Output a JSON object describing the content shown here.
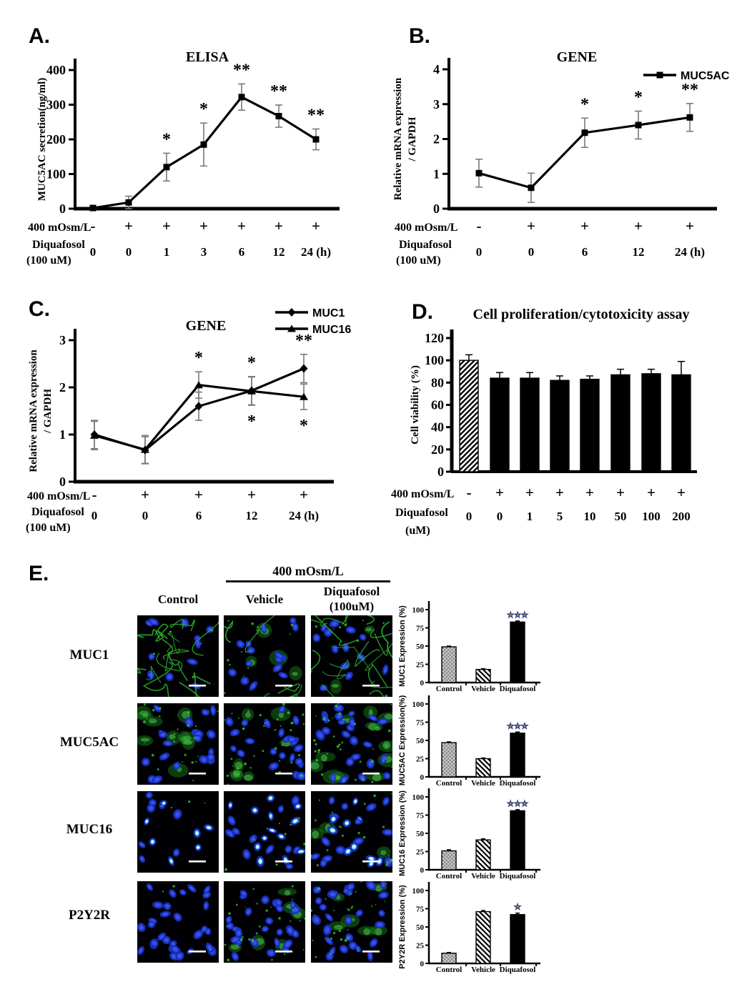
{
  "panels": {
    "a": {
      "label": "A."
    },
    "b": {
      "label": "B."
    },
    "c": {
      "label": "C."
    },
    "d": {
      "label": "D."
    },
    "e": {
      "label": "E.",
      "group_header": "400 mOsm/L",
      "col_headers": {
        "control": "Control",
        "vehicle": "Vehicle",
        "diquafosol": "Diquafosol",
        "diquafosol_dose": "(100uM)"
      },
      "row_labels": [
        "MUC1",
        "MUC5AC",
        "MUC16",
        "P2Y2R"
      ]
    }
  },
  "chart_data": [
    {
      "id": "A",
      "type": "line",
      "title": "ELISA",
      "ylabel": [
        "MUC5AC  secretion(ng/ml)"
      ],
      "ylim": [
        0,
        400
      ],
      "yticks": [
        0,
        100,
        200,
        300,
        400
      ],
      "series": [
        {
          "name": "MUC5AC",
          "marker": "square",
          "values": [
            2,
            18,
            120,
            185,
            322,
            267,
            200
          ],
          "errors": [
            4,
            18,
            40,
            62,
            38,
            32,
            30
          ]
        }
      ],
      "sig_above": [
        "",
        "",
        "*",
        "*",
        "**",
        "**",
        "**"
      ],
      "treatment_rows": [
        {
          "label": "400 mOsm/L",
          "values": [
            "-",
            "+",
            "+",
            "+",
            "+",
            "+",
            "+"
          ]
        },
        {
          "label": "Diquafosol",
          "sublabel": "(100 uM)",
          "values": [
            "0",
            "0",
            "1",
            "3",
            "6",
            "12",
            "24 (h)"
          ]
        }
      ]
    },
    {
      "id": "B",
      "type": "line",
      "title": "GENE",
      "ylabel": [
        "Relative  mRNA  expression",
        "/ GAPDH"
      ],
      "ylim": [
        0,
        4
      ],
      "yticks": [
        0,
        1,
        2,
        3,
        4
      ],
      "legend": true,
      "series": [
        {
          "name": "MUC5AC",
          "marker": "square",
          "values": [
            1.02,
            0.6,
            2.18,
            2.4,
            2.62
          ],
          "errors": [
            0.4,
            0.42,
            0.42,
            0.4,
            0.4
          ]
        }
      ],
      "sig_above": [
        "",
        "",
        "*",
        "*",
        "**"
      ],
      "treatment_rows": [
        {
          "label": "400 mOsm/L",
          "values": [
            "-",
            "+",
            "+",
            "+",
            "+"
          ]
        },
        {
          "label": "Diquafosol",
          "sublabel": "(100 uM)",
          "values": [
            "0",
            "0",
            "6",
            "12",
            "24 (h)"
          ]
        }
      ]
    },
    {
      "id": "C",
      "type": "line",
      "title": "GENE",
      "ylabel": [
        "Relative  mRNA  expression",
        "/ GAPDH"
      ],
      "ylim": [
        0,
        3
      ],
      "yticks": [
        0,
        1,
        2,
        3
      ],
      "legend": true,
      "series": [
        {
          "name": "MUC1",
          "marker": "diamond",
          "values": [
            1.0,
            0.67,
            1.6,
            1.93,
            2.4
          ],
          "errors": [
            0.3,
            0.28,
            0.3,
            0.3,
            0.3
          ]
        },
        {
          "name": "MUC16",
          "marker": "triangle",
          "values": [
            0.98,
            0.68,
            2.05,
            1.92,
            1.8
          ],
          "errors": [
            0.3,
            0.3,
            0.28,
            0.3,
            0.27
          ]
        }
      ],
      "sig_above": [
        "",
        "",
        "*",
        "*",
        "**"
      ],
      "sig_below": [
        "",
        "",
        "",
        "*",
        "*"
      ],
      "treatment_rows": [
        {
          "label": "400 mOsm/L",
          "values": [
            "-",
            "+",
            "+",
            "+",
            "+"
          ]
        },
        {
          "label": "Diquafosol",
          "sublabel": "(100 uM)",
          "values": [
            "0",
            "0",
            "6",
            "12",
            "24 (h)"
          ]
        }
      ]
    },
    {
      "id": "D",
      "type": "bar",
      "title": "Cell proliferation/cytotoxicity  assay",
      "ylabel": [
        "Cell viability  (%)"
      ],
      "ylim": [
        0,
        120
      ],
      "yticks": [
        0,
        20,
        40,
        60,
        80,
        100,
        120
      ],
      "values": [
        100,
        84,
        84,
        82,
        83,
        87,
        88,
        87
      ],
      "errors": [
        5,
        5,
        5,
        4,
        3,
        5,
        4,
        12
      ],
      "patterns": [
        "diagUp",
        "solid",
        "solid",
        "solid",
        "solid",
        "solid",
        "solid",
        "solid"
      ],
      "treatment_rows": [
        {
          "label": "400 mOsm/L",
          "values": [
            "-",
            "+",
            "+",
            "+",
            "+",
            "+",
            "+",
            "+"
          ]
        },
        {
          "label": "Diquafosol",
          "sublabel": "(uM)",
          "values": [
            "0",
            "0",
            "1",
            "5",
            "10",
            "50",
            "100",
            "200"
          ]
        }
      ]
    },
    {
      "id": "E1",
      "type": "bar",
      "ylabel": [
        "MUC1 Expression (%)"
      ],
      "ylim": [
        0,
        100
      ],
      "yticks": [
        0,
        25,
        50,
        75,
        100
      ],
      "categories": [
        "Control",
        "Vehicle",
        "Diquafosol"
      ],
      "values": [
        49,
        18,
        83
      ],
      "errors": [
        1,
        1,
        1.5
      ],
      "patterns": [
        "checker",
        "diagDown",
        "solid"
      ],
      "sig": [
        "",
        "",
        "***"
      ]
    },
    {
      "id": "E2",
      "type": "bar",
      "ylabel": [
        "MUC5AC Expression(%)"
      ],
      "ylim": [
        0,
        100
      ],
      "yticks": [
        0,
        25,
        50,
        75,
        100
      ],
      "categories": [
        "Control",
        "Vehicle",
        "Diquafosol"
      ],
      "values": [
        47,
        25,
        60
      ],
      "errors": [
        1,
        1,
        1.5
      ],
      "patterns": [
        "checker",
        "diagDown",
        "solid"
      ],
      "sig": [
        "",
        "",
        "***"
      ]
    },
    {
      "id": "E3",
      "type": "bar",
      "ylabel": [
        "MUC16  Expression (%)"
      ],
      "ylim": [
        0,
        100
      ],
      "yticks": [
        0,
        25,
        50,
        75,
        100
      ],
      "categories": [
        "Control",
        "Vehicle",
        "Diquafosol"
      ],
      "values": [
        26,
        41,
        81
      ],
      "errors": [
        1.5,
        1.5,
        1.5
      ],
      "patterns": [
        "checker",
        "diagDown",
        "solid"
      ],
      "sig": [
        "",
        "",
        "***"
      ]
    },
    {
      "id": "E4",
      "type": "bar",
      "ylabel": [
        "P2Y2R Expression (%)"
      ],
      "ylim": [
        0,
        100
      ],
      "yticks": [
        0,
        25,
        50,
        75,
        100
      ],
      "categories": [
        "Control",
        "Vehicle",
        "Diquafosol"
      ],
      "values": [
        14,
        71,
        67
      ],
      "errors": [
        1,
        1.5,
        2
      ],
      "patterns": [
        "checker",
        "diagDown",
        "solid"
      ],
      "sig": [
        "",
        "",
        "*"
      ]
    }
  ],
  "micrographs": [
    {
      "row": "MUC1",
      "col": "Control",
      "seed": 101,
      "nuclei": 11,
      "filaments": 13,
      "blobs": 0,
      "specks": 6,
      "cyan": false
    },
    {
      "row": "MUC1",
      "col": "Vehicle",
      "seed": 102,
      "nuclei": 15,
      "filaments": 5,
      "blobs": 4,
      "specks": 12,
      "cyan": false
    },
    {
      "row": "MUC1",
      "col": "Diquafosol",
      "seed": 103,
      "nuclei": 13,
      "filaments": 15,
      "blobs": 2,
      "specks": 8,
      "cyan": false
    },
    {
      "row": "MUC5AC",
      "col": "Control",
      "seed": 201,
      "nuclei": 20,
      "filaments": 0,
      "blobs": 10,
      "specks": 25,
      "cyan": false
    },
    {
      "row": "MUC5AC",
      "col": "Vehicle",
      "seed": 202,
      "nuclei": 22,
      "filaments": 0,
      "blobs": 7,
      "specks": 35,
      "cyan": false
    },
    {
      "row": "MUC5AC",
      "col": "Diquafosol",
      "seed": 203,
      "nuclei": 24,
      "filaments": 0,
      "blobs": 12,
      "specks": 35,
      "cyan": false
    },
    {
      "row": "MUC16",
      "col": "Control",
      "seed": 301,
      "nuclei": 15,
      "filaments": 0,
      "blobs": 0,
      "specks": 4,
      "cyan": true
    },
    {
      "row": "MUC16",
      "col": "Vehicle",
      "seed": 302,
      "nuclei": 24,
      "filaments": 0,
      "blobs": 0,
      "specks": 12,
      "cyan": true
    },
    {
      "row": "MUC16",
      "col": "Diquafosol",
      "seed": 303,
      "nuclei": 24,
      "filaments": 0,
      "blobs": 3,
      "specks": 22,
      "cyan": true
    },
    {
      "row": "P2Y2R",
      "col": "Control",
      "seed": 401,
      "nuclei": 30,
      "filaments": 0,
      "blobs": 0,
      "specks": 3,
      "cyan": false
    },
    {
      "row": "P2Y2R",
      "col": "Vehicle",
      "seed": 402,
      "nuclei": 26,
      "filaments": 0,
      "blobs": 6,
      "specks": 30,
      "cyan": false
    },
    {
      "row": "P2Y2R",
      "col": "Diquafosol",
      "seed": 403,
      "nuclei": 26,
      "filaments": 0,
      "blobs": 6,
      "specks": 28,
      "cyan": false
    }
  ]
}
